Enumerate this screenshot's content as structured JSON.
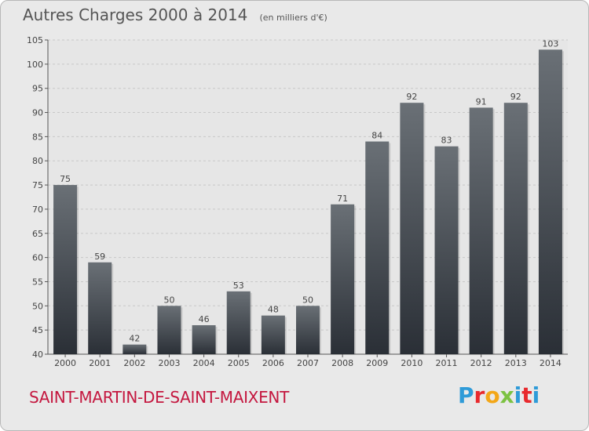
{
  "title": "Autres Charges 2000 à 2014",
  "subtitle": "(en milliers d'€)",
  "place": "SAINT-MARTIN-DE-SAINT-MAIXENT",
  "logo": {
    "letters": [
      "P",
      "r",
      "o",
      "x",
      "i",
      "t",
      "i"
    ],
    "colors": [
      "#2f9bd8",
      "#e8292d",
      "#f3a718",
      "#7cc242",
      "#2f9bd8",
      "#e8292d",
      "#2f9bd8"
    ]
  },
  "colors": {
    "background": "#e9e9e9",
    "bar_top": "#6a7076",
    "bar_bottom": "#2a2f36",
    "place": "#c4173f"
  },
  "chart_data": {
    "type": "bar",
    "categories": [
      "2000",
      "2001",
      "2002",
      "2003",
      "2004",
      "2005",
      "2006",
      "2007",
      "2008",
      "2009",
      "2010",
      "2011",
      "2012",
      "2013",
      "2014"
    ],
    "values": [
      75,
      59,
      42,
      50,
      46,
      53,
      48,
      50,
      71,
      84,
      92,
      83,
      91,
      92,
      103
    ],
    "data_labels": [
      "75",
      "59",
      "42",
      "50",
      "46",
      "53",
      "48",
      "50",
      "71",
      "84",
      "92",
      "83",
      "91",
      "92",
      "103"
    ],
    "ylim": [
      40,
      105
    ],
    "yticks": [
      40,
      45,
      50,
      55,
      60,
      65,
      70,
      75,
      80,
      85,
      90,
      95,
      100,
      105
    ],
    "grid": true,
    "title": "Autres Charges 2000 à 2014",
    "xlabel": "",
    "ylabel": ""
  }
}
